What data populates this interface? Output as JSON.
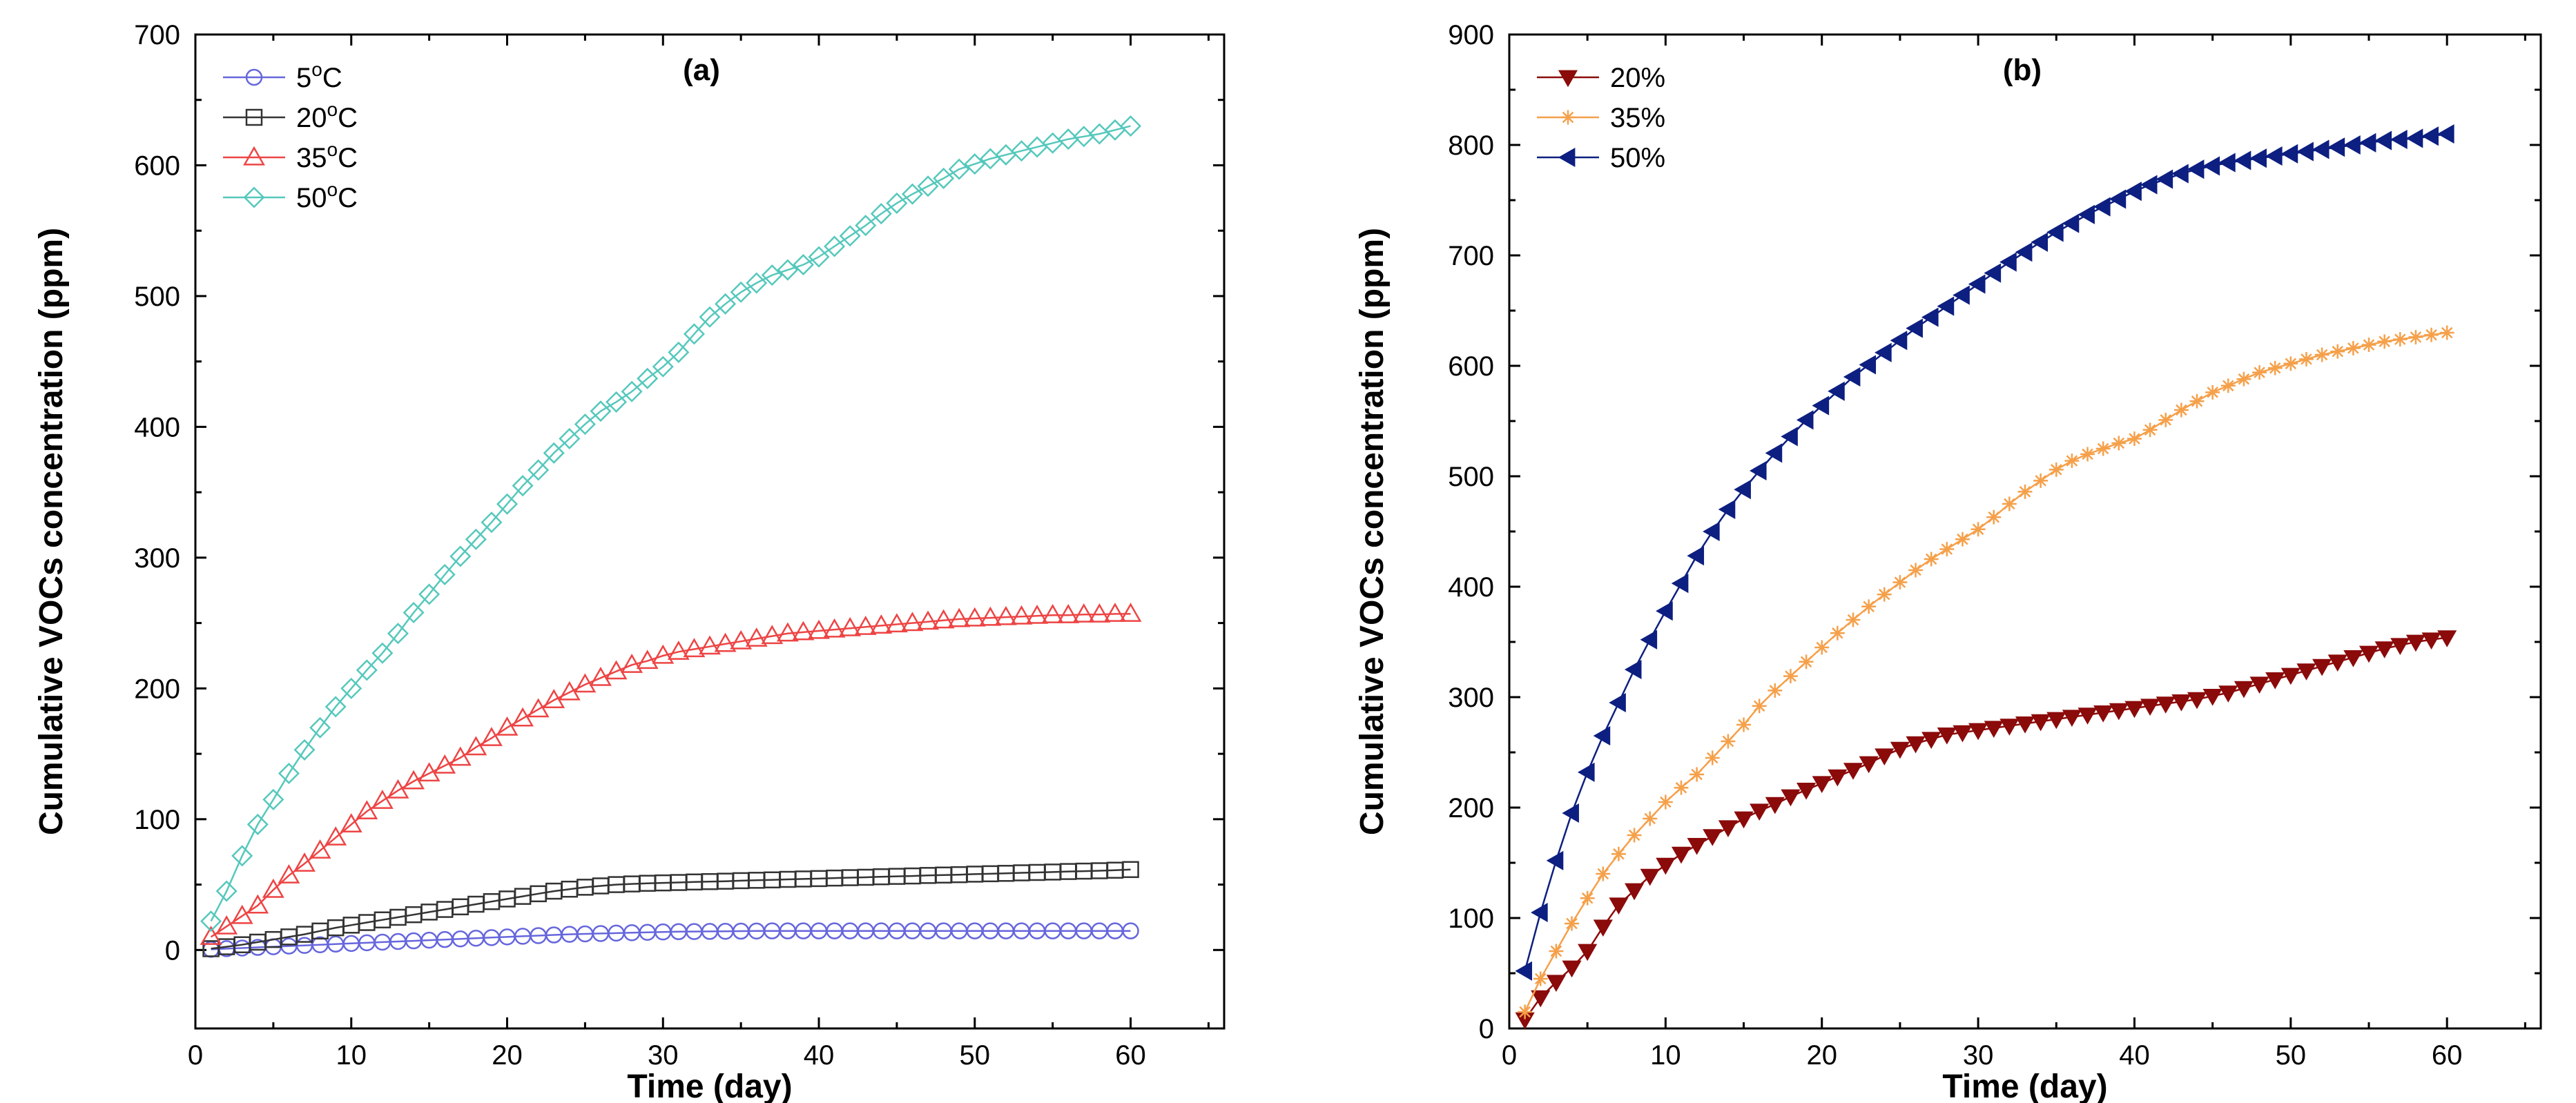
{
  "chart_data": [
    {
      "type": "line",
      "panel_label": "(a)",
      "xlabel": "Time (day)",
      "ylabel": "Cumulative VOCs concentration (ppm)",
      "xlim": [
        0,
        66
      ],
      "ylim": [
        -60,
        700
      ],
      "xticks": [
        0,
        10,
        20,
        30,
        40,
        50,
        60
      ],
      "yticks": [
        0,
        100,
        200,
        300,
        400,
        500,
        600,
        700
      ],
      "legend_position": "top-left",
      "x": [
        1,
        2,
        3,
        4,
        5,
        6,
        7,
        8,
        9,
        10,
        11,
        12,
        13,
        14,
        15,
        16,
        17,
        18,
        19,
        20,
        21,
        22,
        23,
        24,
        25,
        26,
        27,
        28,
        29,
        30,
        31,
        32,
        33,
        34,
        35,
        36,
        37,
        38,
        39,
        40,
        41,
        42,
        43,
        44,
        45,
        46,
        47,
        48,
        49,
        50,
        51,
        52,
        53,
        54,
        55,
        56,
        57,
        58,
        59,
        60
      ],
      "series": [
        {
          "name": "5°C",
          "label_main": "5",
          "label_sup": "o",
          "label_unit": "C",
          "color": "#6666dd",
          "marker": "circle",
          "values": [
            0.5,
            1,
            1.5,
            2,
            2.5,
            3,
            3.5,
            4,
            4.5,
            5,
            5.5,
            6,
            6.5,
            7,
            7.5,
            8,
            8.5,
            9,
            9.5,
            10,
            10.5,
            11,
            11.5,
            12,
            12.3,
            12.6,
            12.9,
            13.2,
            13.5,
            13.8,
            14,
            14.1,
            14.2,
            14.3,
            14.4,
            14.5,
            14.6,
            14.6,
            14.6,
            14.6,
            14.6,
            14.6,
            14.6,
            14.6,
            14.6,
            14.6,
            14.6,
            14.6,
            14.6,
            14.6,
            14.6,
            14.6,
            14.6,
            14.6,
            14.6,
            14.6,
            14.6,
            14.6,
            14.6,
            14.6
          ]
        },
        {
          "name": "20°C",
          "label_main": "20",
          "label_sup": "o",
          "label_unit": "C",
          "color": "#333333",
          "marker": "square",
          "values": [
            1,
            2.5,
            4,
            6,
            8,
            10,
            12,
            14.5,
            17,
            19,
            21,
            23,
            25,
            27,
            29,
            31,
            33,
            35,
            37,
            39,
            41,
            43,
            45,
            46.5,
            48,
            49,
            50,
            50.5,
            51,
            51.3,
            51.6,
            52,
            52.3,
            52.6,
            53,
            53.3,
            53.6,
            54,
            54.3,
            54.6,
            55,
            55.3,
            55.6,
            56,
            56.3,
            56.6,
            57,
            57.3,
            57.6,
            58,
            58.3,
            58.6,
            59,
            59.3,
            59.6,
            60,
            60.3,
            60.6,
            61,
            61.5
          ]
        },
        {
          "name": "35°C",
          "label_main": "35",
          "label_sup": "o",
          "label_unit": "C",
          "color": "#ee4444",
          "marker": "triangle-up",
          "values": [
            10,
            18,
            26,
            34,
            46,
            57,
            66,
            76,
            86,
            96,
            106,
            114,
            122,
            129,
            135,
            141,
            147,
            155,
            162,
            170,
            177,
            184,
            191,
            197,
            203,
            208,
            213,
            218,
            221,
            225,
            228,
            230,
            232,
            234,
            236,
            238,
            240,
            242,
            243,
            244,
            245,
            246,
            247,
            248,
            249,
            250,
            251,
            252,
            253,
            253.5,
            254,
            254.5,
            255,
            255.5,
            256,
            256,
            256.5,
            256.5,
            257,
            257
          ]
        },
        {
          "name": "50°C",
          "label_main": "50",
          "label_sup": "o",
          "label_unit": "C",
          "color": "#55c8bc",
          "marker": "diamond",
          "values": [
            22,
            45,
            72,
            96,
            115,
            135,
            153,
            170,
            186,
            200,
            214,
            227,
            242,
            258,
            272,
            287,
            301,
            314,
            327,
            341,
            355,
            367,
            380,
            391,
            402,
            412,
            419,
            427,
            437,
            446,
            457,
            471,
            484,
            494,
            503,
            510,
            516,
            520,
            524,
            530,
            538,
            546,
            554,
            563,
            571,
            578,
            584,
            590,
            597,
            601,
            605,
            608,
            611,
            614,
            617,
            620,
            622,
            624,
            627,
            630
          ]
        }
      ]
    },
    {
      "type": "line",
      "panel_label": "(b)",
      "xlabel": "Time (day)",
      "ylabel": "Cumulative VOCs concentration (ppm)",
      "xlim": [
        0,
        66
      ],
      "ylim": [
        0,
        900
      ],
      "xticks": [
        0,
        10,
        20,
        30,
        40,
        50,
        60
      ],
      "yticks": [
        0,
        100,
        200,
        300,
        400,
        500,
        600,
        700,
        800,
        900
      ],
      "legend_position": "top-left",
      "x": [
        1,
        2,
        3,
        4,
        5,
        6,
        7,
        8,
        9,
        10,
        11,
        12,
        13,
        14,
        15,
        16,
        17,
        18,
        19,
        20,
        21,
        22,
        23,
        24,
        25,
        26,
        27,
        28,
        29,
        30,
        31,
        32,
        33,
        34,
        35,
        36,
        37,
        38,
        39,
        40,
        41,
        42,
        43,
        44,
        45,
        46,
        47,
        48,
        49,
        50,
        51,
        52,
        53,
        54,
        55,
        56,
        57,
        58,
        59,
        60
      ],
      "series": [
        {
          "name": "20%",
          "label_main": "20%",
          "label_sup": "",
          "label_unit": "",
          "color": "#8b0a0a",
          "marker": "triangle-down",
          "values": [
            8,
            28,
            42,
            55,
            70,
            92,
            112,
            125,
            138,
            148,
            158,
            166,
            174,
            182,
            190,
            197,
            203,
            210,
            216,
            222,
            228,
            234,
            240,
            247,
            253,
            258,
            262,
            266,
            268,
            270,
            272,
            274,
            276,
            278,
            280,
            282,
            284,
            286,
            288,
            290,
            292,
            294,
            296,
            298,
            301,
            304,
            308,
            312,
            316,
            320,
            324,
            328,
            332,
            336,
            340,
            344,
            347,
            350,
            352,
            354
          ]
        },
        {
          "name": "35%",
          "label_main": "35%",
          "label_sup": "",
          "label_unit": "",
          "color": "#f5a04a",
          "marker": "star",
          "values": [
            15,
            45,
            70,
            95,
            118,
            140,
            158,
            175,
            190,
            205,
            218,
            230,
            245,
            260,
            275,
            292,
            306,
            319,
            332,
            345,
            358,
            370,
            382,
            393,
            404,
            415,
            425,
            434,
            443,
            452,
            463,
            475,
            486,
            496,
            506,
            514,
            520,
            525,
            530,
            534,
            542,
            551,
            560,
            568,
            576,
            582,
            588,
            594,
            598,
            602,
            606,
            610,
            613,
            616,
            619,
            622,
            624,
            626,
            628,
            630
          ]
        },
        {
          "name": "50%",
          "label_main": "50%",
          "label_sup": "",
          "label_unit": "",
          "color": "#0d1f80",
          "marker": "triangle-left",
          "values": [
            52,
            105,
            152,
            195,
            232,
            265,
            295,
            325,
            352,
            378,
            403,
            428,
            450,
            470,
            488,
            505,
            521,
            536,
            551,
            564,
            577,
            590,
            601,
            612,
            623,
            634,
            644,
            654,
            664,
            674,
            684,
            694,
            703,
            712,
            721,
            729,
            737,
            744,
            751,
            758,
            764,
            769,
            774,
            778,
            781,
            784,
            786,
            788,
            790,
            792,
            794,
            796,
            798,
            800,
            802,
            804,
            805,
            806,
            808,
            810
          ]
        }
      ]
    }
  ]
}
